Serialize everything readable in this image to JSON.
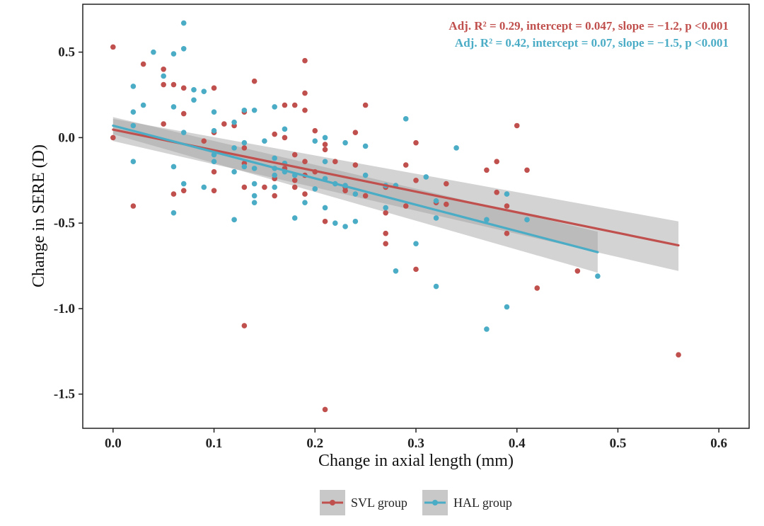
{
  "chart_data": {
    "type": "scatter",
    "xlabel": "Change in axial length (mm)",
    "ylabel": "Change in SERE (D)",
    "xlim": [
      -0.03,
      0.63
    ],
    "ylim": [
      -1.7,
      0.78
    ],
    "x_ticks": [
      0.0,
      0.1,
      0.2,
      0.3,
      0.4,
      0.5,
      0.6
    ],
    "x_tick_labels": [
      "0.0",
      "0.1",
      "0.2",
      "0.3",
      "0.4",
      "0.5",
      "0.6"
    ],
    "y_ticks": [
      0.5,
      0.0,
      -0.5,
      -1.0,
      -1.5
    ],
    "y_tick_labels": [
      "0.5",
      "0.0",
      "-0.5",
      "-1.0",
      "-1.5"
    ],
    "grid": false,
    "legend_position": "bottom",
    "annotations": [
      {
        "text": "Adj. R² = 0.29, intercept = 0.047, slope = −1.2, p <0.001",
        "series": "SVL group"
      },
      {
        "text": "Adj. R² = 0.42, intercept = 0.07, slope = −1.5, p <0.001",
        "series": "HAL group"
      }
    ],
    "series": [
      {
        "name": "SVL group",
        "color": "#c0504d",
        "fit": {
          "x": [
            0.0,
            0.56
          ],
          "y": [
            0.047,
            -0.63
          ]
        },
        "ci_band": {
          "x": [
            0.0,
            0.56
          ],
          "upper": [
            0.11,
            -0.49
          ],
          "lower": [
            -0.02,
            -0.78
          ]
        },
        "points": [
          [
            0.0,
            0.53
          ],
          [
            0.0,
            0.0
          ],
          [
            0.02,
            -0.4
          ],
          [
            0.03,
            0.43
          ],
          [
            0.05,
            0.4
          ],
          [
            0.05,
            0.31
          ],
          [
            0.05,
            0.08
          ],
          [
            0.06,
            0.31
          ],
          [
            0.06,
            -0.33
          ],
          [
            0.07,
            0.29
          ],
          [
            0.07,
            0.14
          ],
          [
            0.07,
            -0.31
          ],
          [
            0.09,
            -0.02
          ],
          [
            0.1,
            0.29
          ],
          [
            0.1,
            0.03
          ],
          [
            0.1,
            -0.2
          ],
          [
            0.1,
            -0.31
          ],
          [
            0.11,
            0.08
          ],
          [
            0.12,
            0.07
          ],
          [
            0.13,
            0.15
          ],
          [
            0.13,
            -0.06
          ],
          [
            0.13,
            -0.15
          ],
          [
            0.13,
            -0.29
          ],
          [
            0.13,
            -1.1
          ],
          [
            0.14,
            0.33
          ],
          [
            0.15,
            -0.29
          ],
          [
            0.16,
            0.02
          ],
          [
            0.16,
            -0.24
          ],
          [
            0.16,
            -0.34
          ],
          [
            0.17,
            0.19
          ],
          [
            0.17,
            0.0
          ],
          [
            0.17,
            -0.18
          ],
          [
            0.18,
            0.19
          ],
          [
            0.18,
            -0.1
          ],
          [
            0.18,
            -0.25
          ],
          [
            0.18,
            -0.29
          ],
          [
            0.19,
            0.45
          ],
          [
            0.19,
            0.26
          ],
          [
            0.19,
            0.16
          ],
          [
            0.19,
            -0.14
          ],
          [
            0.19,
            -0.22
          ],
          [
            0.19,
            -0.33
          ],
          [
            0.2,
            0.04
          ],
          [
            0.2,
            -0.2
          ],
          [
            0.21,
            -0.04
          ],
          [
            0.21,
            -0.07
          ],
          [
            0.21,
            -0.49
          ],
          [
            0.21,
            -1.59
          ],
          [
            0.22,
            -0.14
          ],
          [
            0.23,
            -0.31
          ],
          [
            0.23,
            -0.29
          ],
          [
            0.24,
            0.03
          ],
          [
            0.24,
            -0.16
          ],
          [
            0.25,
            0.19
          ],
          [
            0.25,
            -0.34
          ],
          [
            0.27,
            -0.29
          ],
          [
            0.27,
            -0.44
          ],
          [
            0.27,
            -0.56
          ],
          [
            0.27,
            -0.62
          ],
          [
            0.29,
            -0.16
          ],
          [
            0.29,
            -0.4
          ],
          [
            0.3,
            -0.03
          ],
          [
            0.3,
            -0.25
          ],
          [
            0.3,
            -0.77
          ],
          [
            0.32,
            -0.38
          ],
          [
            0.33,
            -0.27
          ],
          [
            0.33,
            -0.39
          ],
          [
            0.37,
            -0.19
          ],
          [
            0.38,
            -0.14
          ],
          [
            0.38,
            -0.32
          ],
          [
            0.39,
            -0.4
          ],
          [
            0.39,
            -0.56
          ],
          [
            0.4,
            0.07
          ],
          [
            0.41,
            -0.19
          ],
          [
            0.42,
            -0.88
          ],
          [
            0.46,
            -0.78
          ],
          [
            0.56,
            -1.27
          ]
        ]
      },
      {
        "name": "HAL group",
        "color": "#4bacc6",
        "fit": {
          "x": [
            0.0,
            0.48
          ],
          "y": [
            0.07,
            -0.67
          ]
        },
        "ci_band": {
          "x": [
            0.0,
            0.48
          ],
          "upper": [
            0.12,
            -0.55
          ],
          "lower": [
            0.02,
            -0.79
          ]
        },
        "points": [
          [
            0.02,
            0.3
          ],
          [
            0.02,
            0.15
          ],
          [
            0.02,
            0.07
          ],
          [
            0.02,
            -0.14
          ],
          [
            0.03,
            0.19
          ],
          [
            0.04,
            0.5
          ],
          [
            0.05,
            0.36
          ],
          [
            0.06,
            0.49
          ],
          [
            0.06,
            0.18
          ],
          [
            0.06,
            -0.17
          ],
          [
            0.06,
            -0.44
          ],
          [
            0.07,
            0.67
          ],
          [
            0.07,
            0.52
          ],
          [
            0.07,
            0.03
          ],
          [
            0.07,
            -0.27
          ],
          [
            0.08,
            0.28
          ],
          [
            0.08,
            0.22
          ],
          [
            0.09,
            0.27
          ],
          [
            0.09,
            -0.29
          ],
          [
            0.1,
            0.15
          ],
          [
            0.1,
            0.04
          ],
          [
            0.1,
            -0.1
          ],
          [
            0.1,
            -0.14
          ],
          [
            0.12,
            0.09
          ],
          [
            0.12,
            -0.06
          ],
          [
            0.12,
            -0.2
          ],
          [
            0.12,
            -0.48
          ],
          [
            0.13,
            0.16
          ],
          [
            0.13,
            -0.03
          ],
          [
            0.13,
            -0.17
          ],
          [
            0.14,
            0.16
          ],
          [
            0.14,
            -0.18
          ],
          [
            0.14,
            -0.27
          ],
          [
            0.14,
            -0.34
          ],
          [
            0.14,
            -0.38
          ],
          [
            0.15,
            -0.02
          ],
          [
            0.16,
            0.18
          ],
          [
            0.16,
            -0.12
          ],
          [
            0.16,
            -0.18
          ],
          [
            0.16,
            -0.22
          ],
          [
            0.16,
            -0.29
          ],
          [
            0.17,
            0.05
          ],
          [
            0.17,
            -0.15
          ],
          [
            0.17,
            -0.2
          ],
          [
            0.18,
            -0.22
          ],
          [
            0.18,
            -0.47
          ],
          [
            0.19,
            -0.38
          ],
          [
            0.2,
            -0.02
          ],
          [
            0.2,
            -0.3
          ],
          [
            0.21,
            0.0
          ],
          [
            0.21,
            -0.14
          ],
          [
            0.21,
            -0.24
          ],
          [
            0.21,
            -0.41
          ],
          [
            0.22,
            -0.27
          ],
          [
            0.22,
            -0.5
          ],
          [
            0.23,
            -0.03
          ],
          [
            0.23,
            -0.28
          ],
          [
            0.23,
            -0.52
          ],
          [
            0.24,
            -0.33
          ],
          [
            0.24,
            -0.49
          ],
          [
            0.25,
            -0.05
          ],
          [
            0.25,
            -0.22
          ],
          [
            0.27,
            -0.28
          ],
          [
            0.27,
            -0.41
          ],
          [
            0.28,
            -0.28
          ],
          [
            0.28,
            -0.78
          ],
          [
            0.29,
            0.11
          ],
          [
            0.3,
            -0.62
          ],
          [
            0.31,
            -0.23
          ],
          [
            0.32,
            -0.37
          ],
          [
            0.32,
            -0.47
          ],
          [
            0.32,
            -0.87
          ],
          [
            0.34,
            -0.06
          ],
          [
            0.37,
            -0.48
          ],
          [
            0.37,
            -1.12
          ],
          [
            0.39,
            -0.33
          ],
          [
            0.39,
            -0.99
          ],
          [
            0.41,
            -0.48
          ],
          [
            0.48,
            -0.81
          ]
        ]
      }
    ],
    "band_color": "#9e9e9e"
  }
}
